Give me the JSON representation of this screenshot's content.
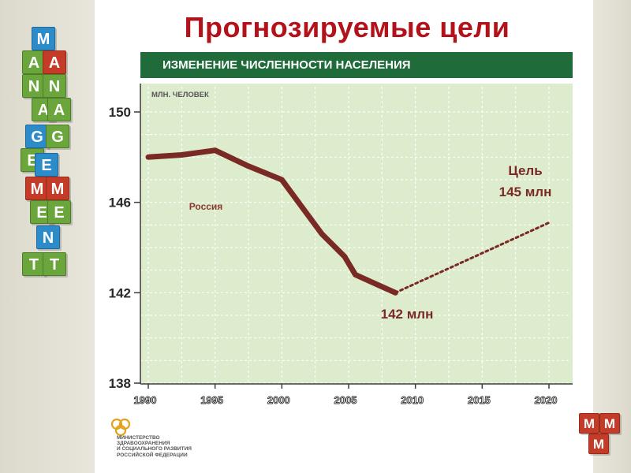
{
  "slide": {
    "title": "Прогнозируемые цели",
    "header": "ИЗМЕНЕНИЕ ЧИСЛЕННОСТИ НАСЕЛЕНИЯ"
  },
  "decor": {
    "left_blocks": [
      {
        "letter": "M",
        "color": "#2c8bc9"
      },
      {
        "letter": "A",
        "color": "#6aa63b"
      },
      {
        "letter": "A",
        "color": "#c43b27"
      },
      {
        "letter": "N",
        "color": "#6aa63b"
      },
      {
        "letter": "N",
        "color": "#6aa63b"
      },
      {
        "letter": "A",
        "color": "#6aa63b"
      },
      {
        "letter": "A",
        "color": "#6aa63b"
      },
      {
        "letter": "G",
        "color": "#2c8bc9"
      },
      {
        "letter": "G",
        "color": "#6aa63b"
      },
      {
        "letter": "E",
        "color": "#6aa63b"
      },
      {
        "letter": "E",
        "color": "#2c8bc9"
      },
      {
        "letter": "M",
        "color": "#c43b27"
      },
      {
        "letter": "M",
        "color": "#c43b27"
      },
      {
        "letter": "E",
        "color": "#6aa63b"
      },
      {
        "letter": "E",
        "color": "#6aa63b"
      },
      {
        "letter": "N",
        "color": "#2c8bc9"
      },
      {
        "letter": "T",
        "color": "#6aa63b"
      },
      {
        "letter": "T",
        "color": "#6aa63b"
      }
    ],
    "corner_blocks": [
      {
        "letter": "M",
        "color": "#c43b27"
      },
      {
        "letter": "M",
        "color": "#c43b27"
      },
      {
        "letter": "M",
        "color": "#c43b27"
      }
    ],
    "ministry_lines": [
      "Министерство",
      "здравоохранения",
      "и социального развития",
      "Российской Федерации"
    ]
  },
  "chart_data": {
    "type": "line",
    "unit_label": "МЛН. ЧЕЛОВЕК",
    "x_ticks": [
      1990,
      1995,
      2000,
      2005,
      2010,
      2015,
      2020
    ],
    "y_ticks": [
      138,
      142,
      146,
      150
    ],
    "xlim": [
      1990,
      2020
    ],
    "ylim": [
      138,
      150
    ],
    "grid": true,
    "series": [
      {
        "name": "Россия",
        "style": "solid",
        "color": "#7a2a25",
        "points": [
          [
            1990,
            148.0
          ],
          [
            1992.5,
            148.1
          ],
          [
            1995,
            148.3
          ],
          [
            1997.5,
            147.6
          ],
          [
            2000,
            147.0
          ],
          [
            2001.5,
            145.8
          ],
          [
            2003,
            144.6
          ],
          [
            2004.7,
            143.6
          ],
          [
            2005.5,
            142.8
          ],
          [
            2007,
            142.4
          ],
          [
            2008.5,
            142.0
          ]
        ]
      },
      {
        "name": "",
        "style": "dashed",
        "color": "#7a2a25",
        "points": [
          [
            2008.5,
            142.0
          ],
          [
            2020,
            145.1
          ]
        ]
      }
    ],
    "annotations": [
      {
        "id": "current",
        "text": "142 млн",
        "color": "#7a2a25"
      },
      {
        "id": "goal_title",
        "text": "Цель",
        "color": "#7a2a25"
      },
      {
        "id": "goal_value",
        "text": "145 млн",
        "color": "#7a2a25"
      }
    ]
  }
}
